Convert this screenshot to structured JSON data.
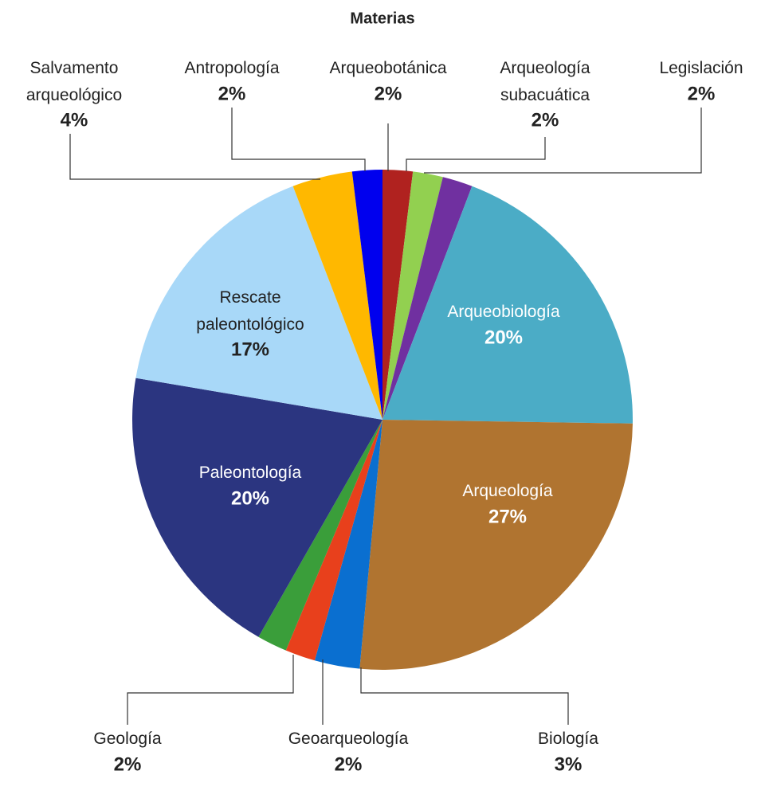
{
  "chart_data": {
    "type": "pie",
    "title": "Materias",
    "categories": [
      "Arqueobotánica",
      "Arqueología subacuática",
      "Legislación",
      "Arqueobiología",
      "Arqueología",
      "Biología",
      "Geoarqueología",
      "Geología",
      "Paleontología",
      "Rescate paleontológico",
      "Salvamento arqueológico",
      "Antropología"
    ],
    "values": [
      2,
      2,
      2,
      20,
      27,
      3,
      2,
      2,
      20,
      17,
      4,
      2
    ],
    "value_labels": [
      "2%",
      "2%",
      "2%",
      "20%",
      "27%",
      "3%",
      "2%",
      "2%",
      "20%",
      "17%",
      "4%",
      "2%"
    ],
    "colors": [
      "#b0221f",
      "#92d050",
      "#7030a0",
      "#4bacc6",
      "#b07430",
      "#0a6fd0",
      "#e8401c",
      "#3a9e3a",
      "#2b3580",
      "#a8d8f8",
      "#ffb800",
      "#0000ee"
    ]
  }
}
